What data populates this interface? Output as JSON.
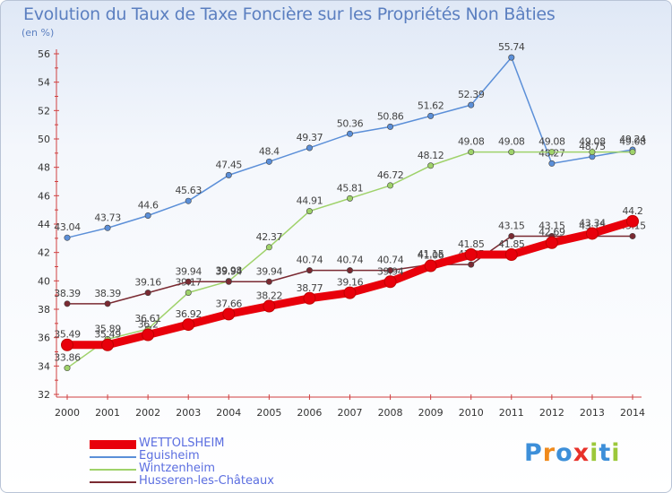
{
  "title": "Evolution du Taux de Taxe Foncière sur les Propriétés Non Bâties",
  "unit": "(en %)",
  "logo": {
    "text": "Proxiti"
  },
  "chart_data": {
    "type": "line",
    "x": [
      "2000",
      "2001",
      "2002",
      "2003",
      "2004",
      "2005",
      "2006",
      "2007",
      "2008",
      "2009",
      "2010",
      "2011",
      "2012",
      "2013",
      "2014"
    ],
    "ylim": [
      32,
      56
    ],
    "yticks": [
      32,
      34,
      36,
      38,
      40,
      42,
      44,
      46,
      48,
      50,
      52,
      54,
      56
    ],
    "grid": false,
    "legend_position": "bottom-left",
    "series": [
      {
        "name": "WETTOLSHEIM",
        "color": "#e8000b",
        "values": [
          35.49,
          35.49,
          36.2,
          36.92,
          37.66,
          38.22,
          38.77,
          39.16,
          39.94,
          41.06,
          41.85,
          41.85,
          42.69,
          43.34,
          44.2
        ],
        "labels": [
          "35.49",
          "35.49",
          "36.2",
          "36.92",
          "37.66",
          "38.22",
          "38.77",
          "39.16",
          "39.94",
          "41.06",
          "41.85",
          "41.85",
          "42.69",
          "43.34",
          "44.2"
        ]
      },
      {
        "name": "Eguisheim",
        "color": "#5b8fd8",
        "values": [
          43.04,
          43.73,
          44.6,
          45.63,
          47.45,
          48.4,
          49.37,
          50.36,
          50.86,
          51.62,
          52.39,
          55.74,
          48.27,
          48.75,
          49.24
        ],
        "labels": [
          "43.04",
          "43.73",
          "44.6",
          "45.63",
          "47.45",
          "48.4",
          "49.37",
          "50.36",
          "50.86",
          "51.62",
          "52.39",
          "55.74",
          "48.27",
          "48.75",
          "49.24"
        ]
      },
      {
        "name": "Wintzenheim",
        "color": "#9fd26a",
        "values": [
          33.86,
          35.89,
          36.61,
          39.17,
          39.98,
          42.37,
          44.91,
          45.81,
          46.72,
          48.12,
          49.08,
          49.08,
          49.08,
          49.08,
          49.08
        ],
        "labels": [
          "33.86",
          "35.89",
          "36.61",
          "39.17",
          "39.98",
          "42.37",
          "44.91",
          "45.81",
          "46.72",
          "48.12",
          "49.08",
          "49.08",
          "49.08",
          "49.08",
          "49.08"
        ]
      },
      {
        "name": "Husseren-les-Châteaux",
        "color": "#7a2a32",
        "values": [
          38.39,
          38.39,
          39.16,
          39.94,
          39.94,
          39.94,
          40.74,
          40.74,
          40.74,
          41.15,
          41.15,
          43.15,
          43.15,
          43.15,
          43.15
        ],
        "labels": [
          "38.39",
          "38.39",
          "39.16",
          "39.94",
          "39.94",
          "39.94",
          "40.74",
          "40.74",
          "40.74",
          "41.15",
          "41.15",
          "43.15",
          "43.15",
          "43.15",
          "43.15"
        ]
      }
    ]
  }
}
